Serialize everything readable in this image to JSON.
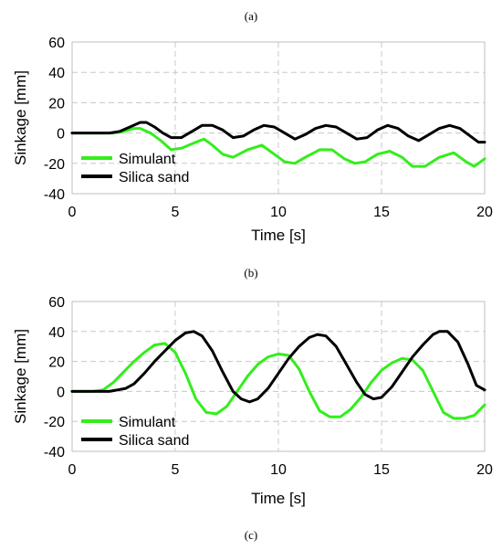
{
  "panel_labels": [
    "(a)",
    "(b)",
    "(c)"
  ],
  "colors": {
    "simulant": "#33ee1c",
    "silica": "#000000",
    "grid": "#c8c8c8"
  },
  "chart_data": [
    {
      "type": "line",
      "xlabel": "Time [s]",
      "ylabel": "Sinkage [mm]",
      "xlim": [
        0,
        20
      ],
      "ylim": [
        -40,
        60
      ],
      "xticks": [
        0,
        5,
        10,
        15,
        20
      ],
      "yticks": [
        -40,
        -20,
        0,
        20,
        40,
        60
      ],
      "grid": "dashed",
      "legend_position": "bottom-left",
      "series": [
        {
          "name": "Simulant",
          "color": "#33ee1c",
          "x": [
            0,
            1,
            2,
            2.5,
            3,
            3.3,
            3.8,
            4.3,
            4.8,
            5.3,
            6,
            6.4,
            6.8,
            7.3,
            7.8,
            8.5,
            9.2,
            9.8,
            10.3,
            10.8,
            11.3,
            12,
            12.6,
            13.2,
            13.7,
            14.2,
            14.8,
            15.4,
            16,
            16.5,
            17.1,
            17.8,
            18.5,
            19.1,
            19.5,
            20
          ],
          "y": [
            0,
            0,
            0,
            1,
            3,
            3,
            0,
            -5,
            -11,
            -10,
            -6,
            -4,
            -8,
            -14,
            -16,
            -11,
            -8,
            -14,
            -19,
            -20,
            -16,
            -11,
            -11,
            -17,
            -20,
            -19,
            -14,
            -12,
            -16,
            -22,
            -22,
            -16,
            -13,
            -19,
            -22,
            -17
          ]
        },
        {
          "name": "Silica sand",
          "color": "#000000",
          "x": [
            0,
            1,
            1.8,
            2.3,
            2.8,
            3.3,
            3.6,
            4,
            4.4,
            4.8,
            5.3,
            5.8,
            6.3,
            6.8,
            7.3,
            7.8,
            8.3,
            8.8,
            9.3,
            9.8,
            10.3,
            10.8,
            11.3,
            11.8,
            12.3,
            12.8,
            13.3,
            13.8,
            14.3,
            14.8,
            15.3,
            15.8,
            16.3,
            16.8,
            17.3,
            17.8,
            18.3,
            18.8,
            19.3,
            19.7,
            20
          ],
          "y": [
            0,
            0,
            0,
            1,
            4,
            7,
            7,
            4,
            0,
            -3,
            -3,
            1,
            5,
            5,
            2,
            -3,
            -2,
            2,
            5,
            4,
            0,
            -4,
            -1,
            3,
            5,
            4,
            0,
            -4,
            -3,
            2,
            5,
            3,
            -2,
            -5,
            -1,
            3,
            5,
            3,
            -2,
            -6,
            -6
          ]
        }
      ]
    },
    {
      "type": "line",
      "xlabel": "Time [s]",
      "ylabel": "Sinkage [mm]",
      "xlim": [
        0,
        20
      ],
      "ylim": [
        -40,
        60
      ],
      "xticks": [
        0,
        5,
        10,
        15,
        20
      ],
      "yticks": [
        -40,
        -20,
        0,
        20,
        40,
        60
      ],
      "grid": "dashed",
      "legend_position": "bottom-left",
      "series": [
        {
          "name": "Simulant",
          "color": "#33ee1c",
          "x": [
            0,
            1,
            1.5,
            2,
            2.5,
            3,
            3.5,
            4,
            4.5,
            5,
            5.5,
            6,
            6.5,
            7,
            7.5,
            8,
            8.5,
            9,
            9.5,
            10,
            10.5,
            11,
            11.5,
            12,
            12.5,
            13,
            13.5,
            14,
            14.5,
            15,
            15.5,
            16,
            16.5,
            17,
            17.5,
            18,
            18.5,
            19,
            19.5,
            20
          ],
          "y": [
            0,
            0,
            1,
            6,
            13,
            20,
            26,
            31,
            32,
            26,
            12,
            -5,
            -14,
            -15,
            -10,
            0,
            10,
            18,
            23,
            25,
            24,
            15,
            0,
            -13,
            -17,
            -17,
            -12,
            -4,
            6,
            14,
            19,
            22,
            21,
            14,
            0,
            -14,
            -18,
            -18,
            -16,
            -9
          ]
        },
        {
          "name": "Silica sand",
          "color": "#000000",
          "x": [
            0,
            1,
            1.8,
            2.2,
            2.6,
            3,
            3.5,
            4,
            4.5,
            5,
            5.5,
            5.9,
            6.3,
            6.8,
            7.3,
            7.8,
            8.2,
            8.6,
            9,
            9.5,
            10,
            10.5,
            11,
            11.5,
            11.9,
            12.3,
            12.8,
            13.3,
            13.8,
            14.2,
            14.6,
            15,
            15.5,
            16,
            16.5,
            17,
            17.5,
            17.8,
            18.2,
            18.7,
            19.2,
            19.6,
            20
          ],
          "y": [
            0,
            0,
            0,
            1,
            2,
            5,
            12,
            20,
            27,
            34,
            39,
            40,
            37,
            27,
            13,
            0,
            -5,
            -7,
            -5,
            2,
            12,
            22,
            30,
            36,
            38,
            37,
            30,
            18,
            6,
            -2,
            -5,
            -4,
            3,
            13,
            23,
            31,
            38,
            40,
            40,
            33,
            18,
            4,
            1
          ]
        }
      ]
    }
  ]
}
